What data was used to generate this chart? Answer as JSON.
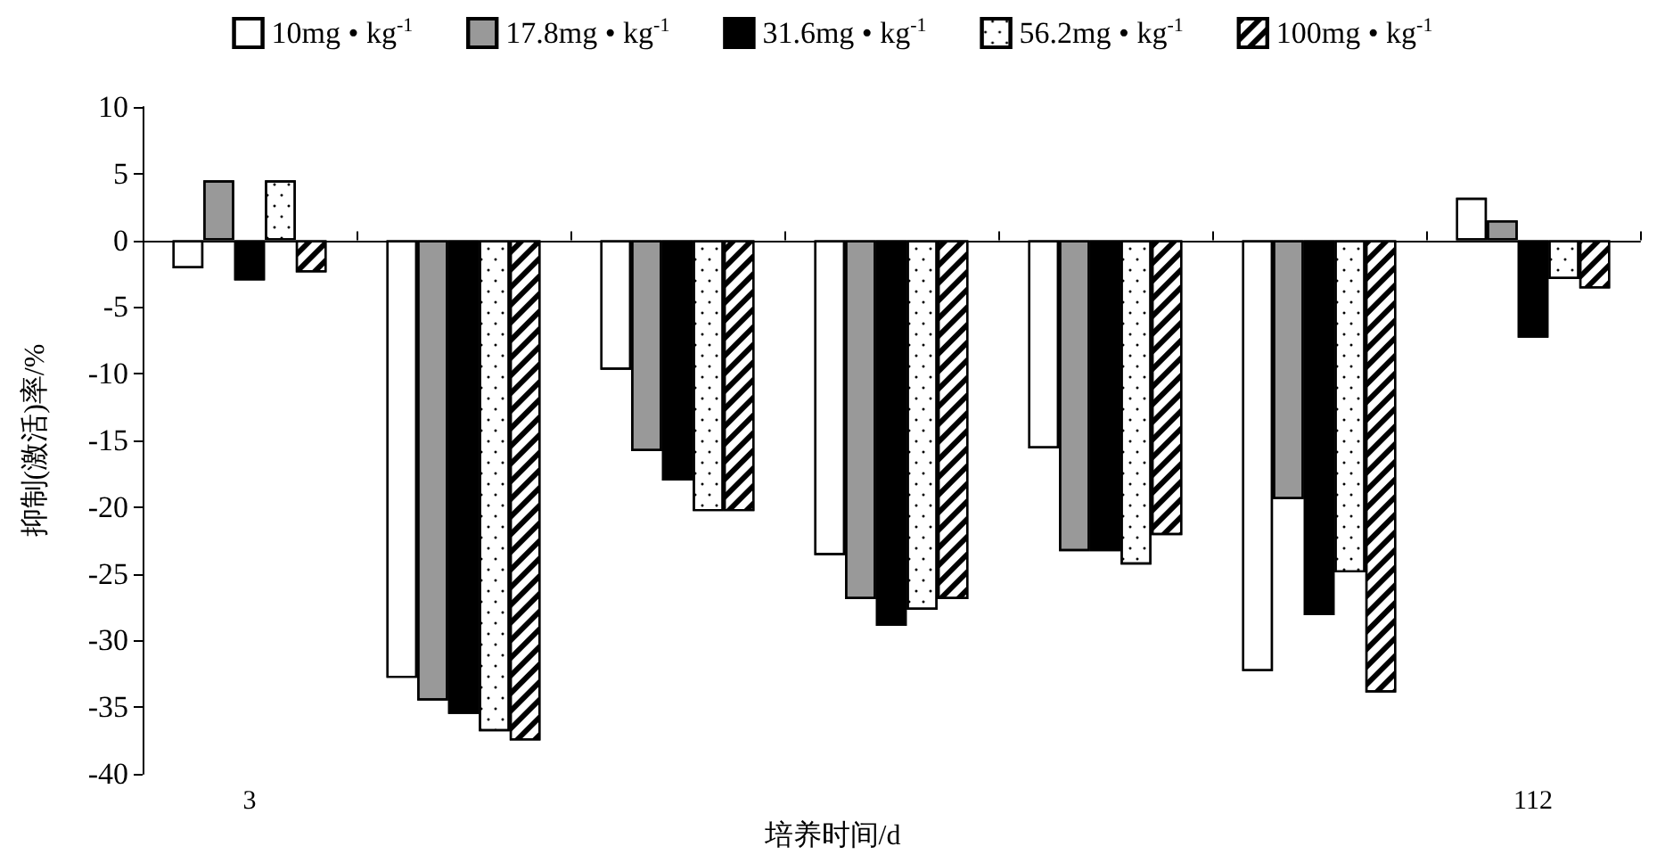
{
  "chart_data": {
    "type": "bar",
    "xlabel": "培养时间/d",
    "ylabel": "抑制(激活)率/%",
    "categories": [
      "3",
      null,
      null,
      null,
      null,
      null,
      "112"
    ],
    "series": [
      {
        "name": "10mg • kg$^{-1}$",
        "color": "#ffffff",
        "values": [
          -2.1,
          -32.8,
          -9.7,
          -23.6,
          -15.6,
          -32.3,
          3.2
        ]
      },
      {
        "name": "17.8mg • kg$^{-1}$",
        "color": "#999999",
        "values": [
          4.5,
          -34.5,
          -15.8,
          -26.9,
          -23.3,
          -19.4,
          1.5
        ]
      },
      {
        "name": "31.6mg • kg$^{-1}$",
        "color": "#000000",
        "values": [
          -3,
          -35.5,
          -18,
          -28.9,
          -23.3,
          -28.1,
          -7.3
        ]
      },
      {
        "name": "56.2mg • kg$^{-1}$",
        "color": "#ffffff",
        "values": [
          4.5,
          -36.8,
          -20.3,
          -27.7,
          -24.3,
          -24.9,
          -2.9
        ]
      },
      {
        "name": "100mg • kg$^{-1}$",
        "color": "#ffffff",
        "values": [
          -2.4,
          -37.5,
          -20.3,
          -26.9,
          -22.1,
          -33.9,
          -3.6
        ]
      }
    ],
    "ylim": [
      -40,
      10
    ],
    "yticks": [
      -40,
      -35,
      -30,
      -25,
      -20,
      -15,
      -10,
      -5,
      0,
      5,
      10
    ],
    "legend": "top"
  }
}
